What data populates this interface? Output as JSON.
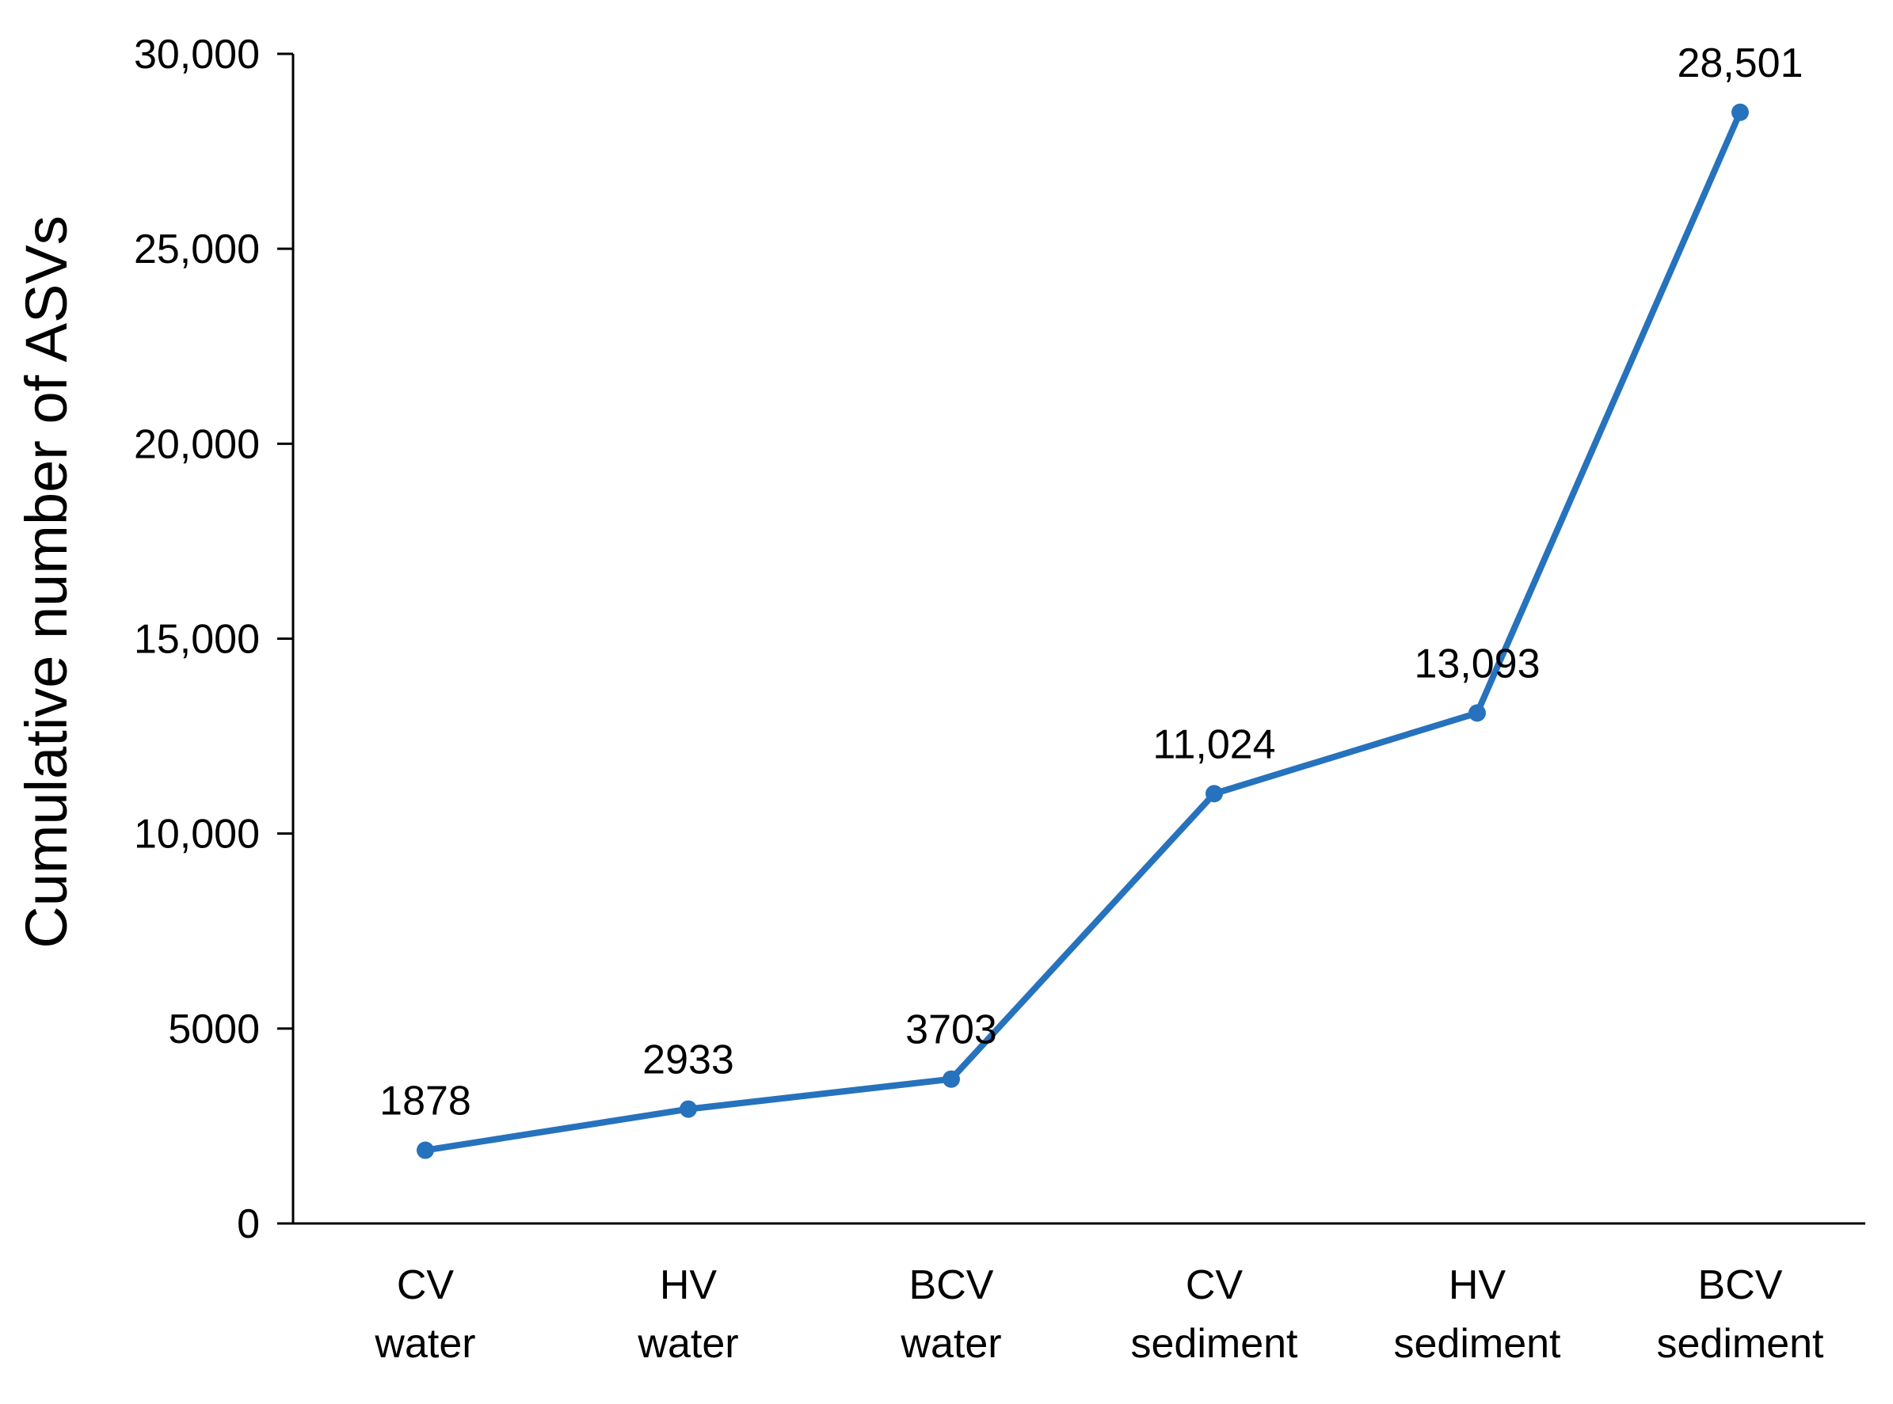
{
  "chart_data": {
    "type": "line",
    "categories": [
      [
        "CV",
        "water"
      ],
      [
        "HV",
        "water"
      ],
      [
        "BCV",
        "water"
      ],
      [
        "CV",
        "sediment"
      ],
      [
        "HV",
        "sediment"
      ],
      [
        "BCV",
        "sediment"
      ]
    ],
    "series": [
      {
        "values": [
          1878,
          2933,
          3703,
          11024,
          13093,
          28501
        ]
      }
    ],
    "data_labels": [
      "1878",
      "2933",
      "3703",
      "11,024",
      "13,093",
      "28,501"
    ],
    "title": "",
    "xlabel": "",
    "ylabel": "Cumulative number of  ASVs",
    "ylim": [
      0,
      30000
    ],
    "yticks": [
      0,
      5000,
      10000,
      15000,
      20000,
      25000,
      30000
    ],
    "ytick_labels": [
      "0",
      "5000",
      "10,000",
      "15,000",
      "20,000",
      "25,000",
      "30,000"
    ],
    "grid": false,
    "legend": "none",
    "line_color": "#2672bd",
    "axis_color": "#000000"
  }
}
